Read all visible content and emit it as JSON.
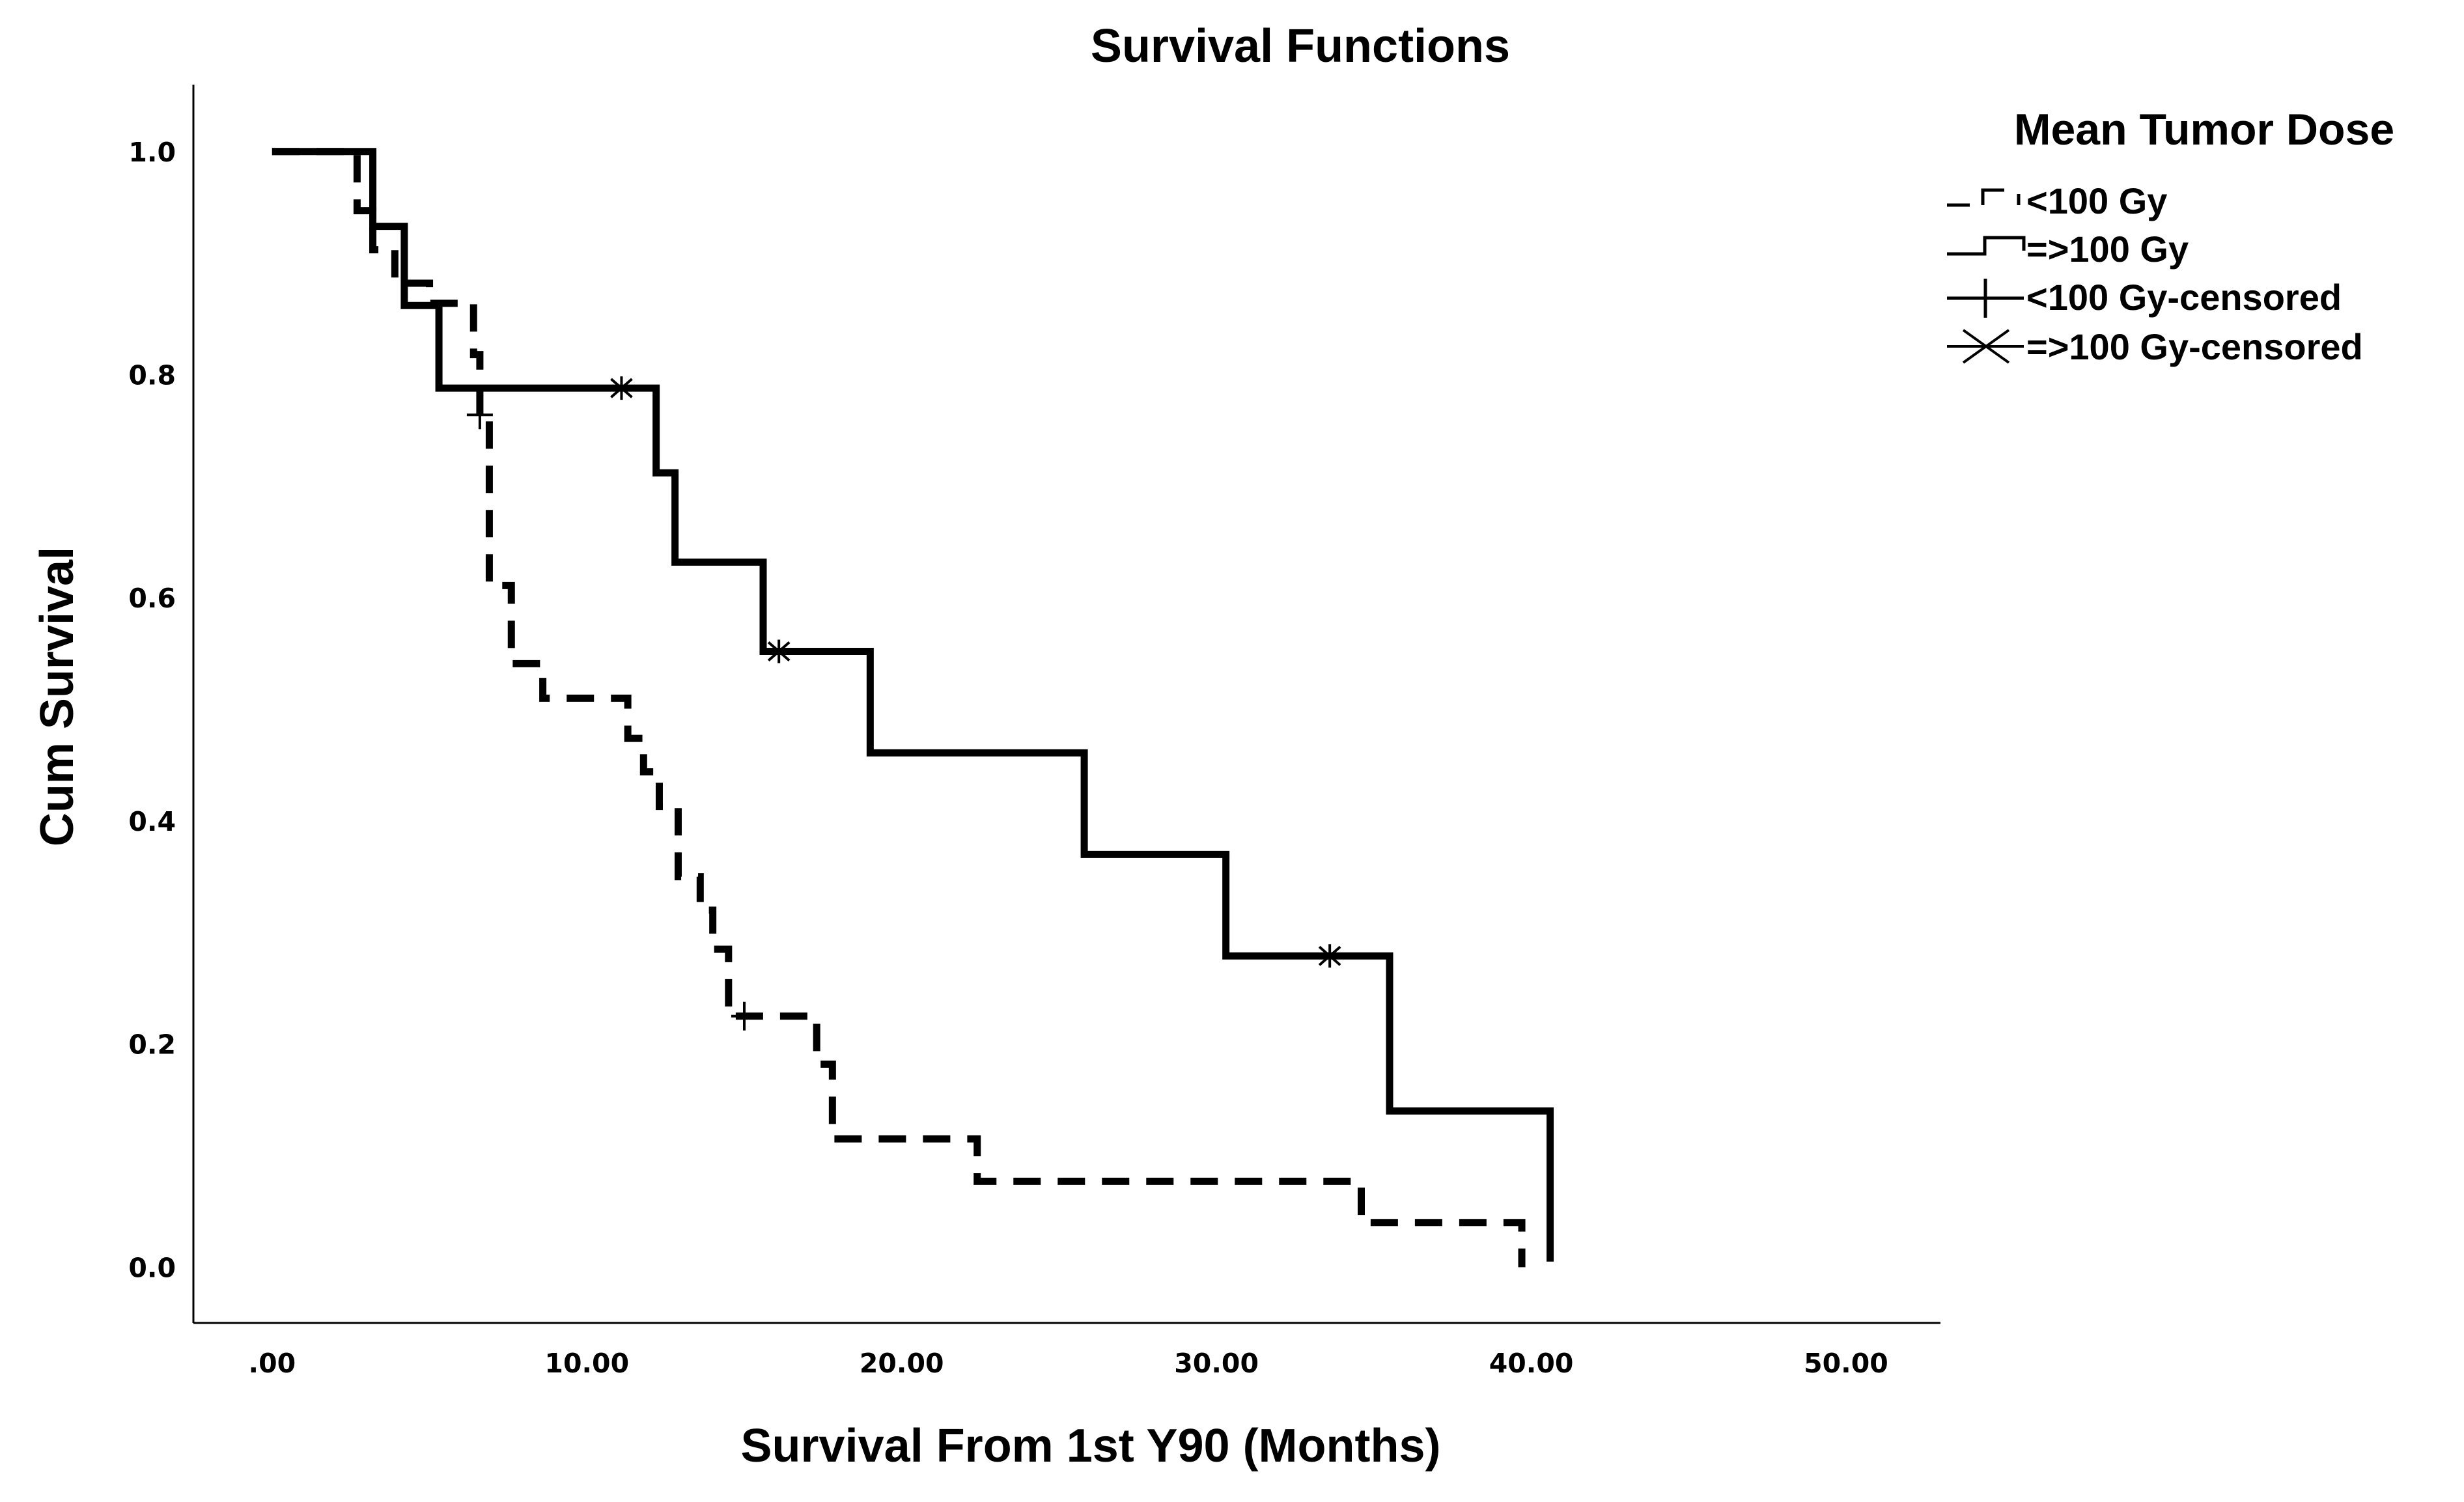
{
  "chart_data": {
    "type": "line",
    "subtype": "kaplan-meier step",
    "title": "Survival Functions",
    "xlabel": "Survival From 1st Y90 (Months)",
    "ylabel": "Cum Survival",
    "xlim": [
      -2.5,
      53
    ],
    "ylim": [
      -0.05,
      1.06
    ],
    "x_ticks": [
      ".00",
      "10.00",
      "20.00",
      "30.00",
      "40.00",
      "50.00"
    ],
    "x_tick_values": [
      0,
      10,
      20,
      30,
      40,
      50
    ],
    "y_ticks": [
      "0.0",
      "0.2",
      "0.4",
      "0.6",
      "0.8",
      "1.0"
    ],
    "y_tick_values": [
      0,
      0.2,
      0.4,
      0.6,
      0.8,
      1.0
    ],
    "grid": false,
    "legend": {
      "title": "Mean Tumor Dose",
      "position": "top-right outside",
      "entries": [
        "<100 Gy",
        "=>100 Gy",
        "<100 Gy-censored",
        "=>100 Gy-censored"
      ]
    },
    "series": [
      {
        "name": "<100 Gy",
        "style": "dashed",
        "color": "#000000",
        "steps": [
          [
            0.0,
            1.0
          ],
          [
            2.7,
            0.947
          ],
          [
            3.2,
            0.912
          ],
          [
            3.9,
            0.882
          ],
          [
            5.0,
            0.864
          ],
          [
            6.4,
            0.818
          ],
          [
            6.6,
            0.764
          ],
          [
            6.9,
            0.611
          ],
          [
            7.6,
            0.541
          ],
          [
            8.6,
            0.51
          ],
          [
            11.3,
            0.474
          ],
          [
            11.8,
            0.444
          ],
          [
            12.3,
            0.413
          ],
          [
            12.9,
            0.35
          ],
          [
            13.6,
            0.32
          ],
          [
            14.0,
            0.285
          ],
          [
            14.5,
            0.225
          ],
          [
            17.3,
            0.182
          ],
          [
            17.8,
            0.115
          ],
          [
            22.4,
            0.077
          ],
          [
            34.6,
            0.04
          ],
          [
            39.7,
            0.0
          ]
        ],
        "end_x": 39.7,
        "censored": [
          [
            6.6,
            0.764
          ],
          [
            15.0,
            0.225
          ]
        ]
      },
      {
        "name": "=>100 Gy",
        "style": "solid",
        "color": "#000000",
        "steps": [
          [
            0.0,
            1.0
          ],
          [
            3.2,
            0.933
          ],
          [
            4.2,
            0.862
          ],
          [
            5.3,
            0.788
          ],
          [
            12.2,
            0.712
          ],
          [
            12.8,
            0.632
          ],
          [
            15.6,
            0.552
          ],
          [
            19.0,
            0.461
          ],
          [
            25.8,
            0.37
          ],
          [
            30.3,
            0.279
          ],
          [
            35.5,
            0.14
          ],
          [
            40.6,
            0.005
          ]
        ],
        "end_x": 40.6,
        "censored": [
          [
            11.1,
            0.788
          ],
          [
            16.1,
            0.552
          ],
          [
            33.6,
            0.279
          ]
        ]
      }
    ]
  }
}
